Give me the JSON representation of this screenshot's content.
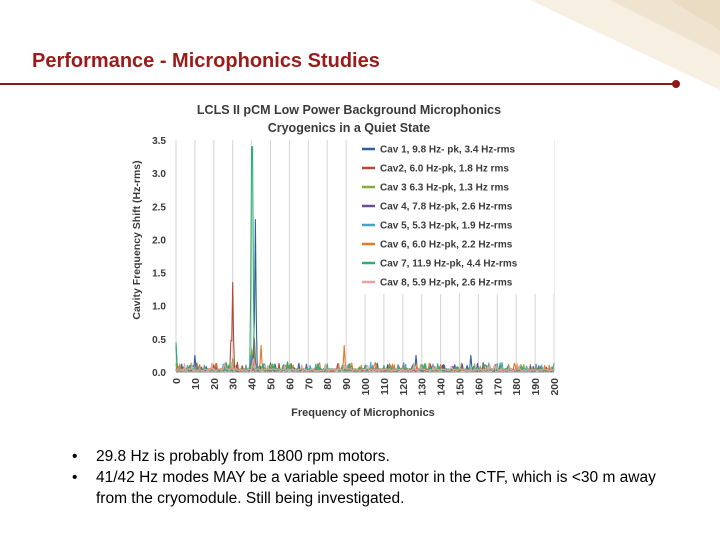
{
  "slide": {
    "title": "Performance - Microphonics Studies",
    "bullets": [
      "29.8 Hz is probably from 1800 rpm motors.",
      "41/42 Hz modes MAY be a variable speed motor in the CTF, which is <30 m away from the cryomodule.  Still being investigated."
    ],
    "bullet_glyph": "•"
  },
  "chart_data": {
    "type": "line",
    "title": "LCLS II pCM Low Power Background Microphonics",
    "subtitle": "Cryogenics in a Quiet State",
    "xlabel": "Frequency of Microphonics",
    "ylabel": "Cavity Frequency Shift (Hz-rms)",
    "xlim": [
      0,
      200
    ],
    "ylim": [
      0,
      3.5
    ],
    "x_ticks": [
      "0",
      "10",
      "20",
      "30",
      "40",
      "50",
      "60",
      "70",
      "80",
      "90",
      "100",
      "110",
      "120",
      "130",
      "140",
      "150",
      "160",
      "170",
      "180",
      "190",
      "200"
    ],
    "y_ticks": [
      "0.0",
      "0.5",
      "1.0",
      "1.5",
      "2.0",
      "2.5",
      "3.0",
      "3.5"
    ],
    "grid": "vertical",
    "legend_position": "right",
    "series": [
      {
        "name": "Cav 1, 9.8 Hz- pk, 3.4 Hz-rms",
        "color": "#2f5f98",
        "peaks": [
          [
            0,
            0.4
          ],
          [
            9.8,
            0.25
          ],
          [
            16,
            0.08
          ],
          [
            41,
            0.35
          ],
          [
            42,
            2.3
          ],
          [
            59,
            0.15
          ],
          [
            100,
            0.08
          ],
          [
            113,
            0.05
          ],
          [
            127,
            0.25
          ],
          [
            156,
            0.25
          ]
        ]
      },
      {
        "name": "Cav2, 6.0 Hz-pk, 1.8 Hz rms",
        "color": "#b5473a",
        "peaks": [
          [
            29.8,
            1.35
          ],
          [
            41.5,
            0.5
          ],
          [
            60,
            0.1
          ]
        ]
      },
      {
        "name": "Cav 3 6.3 Hz-pk, 1.3 Hz rms",
        "color": "#8aaa3b",
        "peaks": [
          [
            30,
            0.2
          ],
          [
            40,
            0.35
          ],
          [
            59,
            0.1
          ],
          [
            102,
            0.05
          ],
          [
            163,
            0.05
          ]
        ]
      },
      {
        "name": "Cav 4, 7.8 Hz-pk, 2.6 Hz-rms",
        "color": "#6a4d93",
        "peaks": [
          [
            20,
            0.05
          ],
          [
            40,
            0.25
          ],
          [
            119,
            0.05
          ],
          [
            150,
            0.05
          ]
        ]
      },
      {
        "name": "Cav 5, 5.3 Hz-pk, 1.9 Hz-rms",
        "color": "#4aa3c0",
        "peaks": [
          [
            10,
            0.1
          ],
          [
            39.8,
            0.25
          ],
          [
            71,
            0.1
          ],
          [
            136,
            0.12
          ]
        ]
      },
      {
        "name": "Cav 6, 6.0 Hz-pk, 2.2 Hz-rms",
        "color": "#e07b25",
        "peaks": [
          [
            30.2,
            0.1
          ],
          [
            39,
            0.1
          ],
          [
            45,
            0.4
          ],
          [
            89,
            0.4
          ],
          [
            120,
            0.1
          ]
        ]
      },
      {
        "name": "Cav 7, 11.9 Hz-pk, 4.4 Hz-rms",
        "color": "#2fae72",
        "peaks": [
          [
            0,
            0.45
          ],
          [
            40.2,
            3.4
          ],
          [
            60,
            0.1
          ],
          [
            80,
            0.1
          ],
          [
            100,
            0.1
          ],
          [
            110,
            0.1
          ],
          [
            164,
            0.1
          ]
        ]
      },
      {
        "name": "Cav 8, 5.9 Hz-pk, 2.6 Hz-rms",
        "color": "#e8a0a0",
        "peaks": [
          [
            29.5,
            0.15
          ],
          [
            41,
            0.2
          ],
          [
            90,
            0.1
          ]
        ]
      }
    ]
  }
}
